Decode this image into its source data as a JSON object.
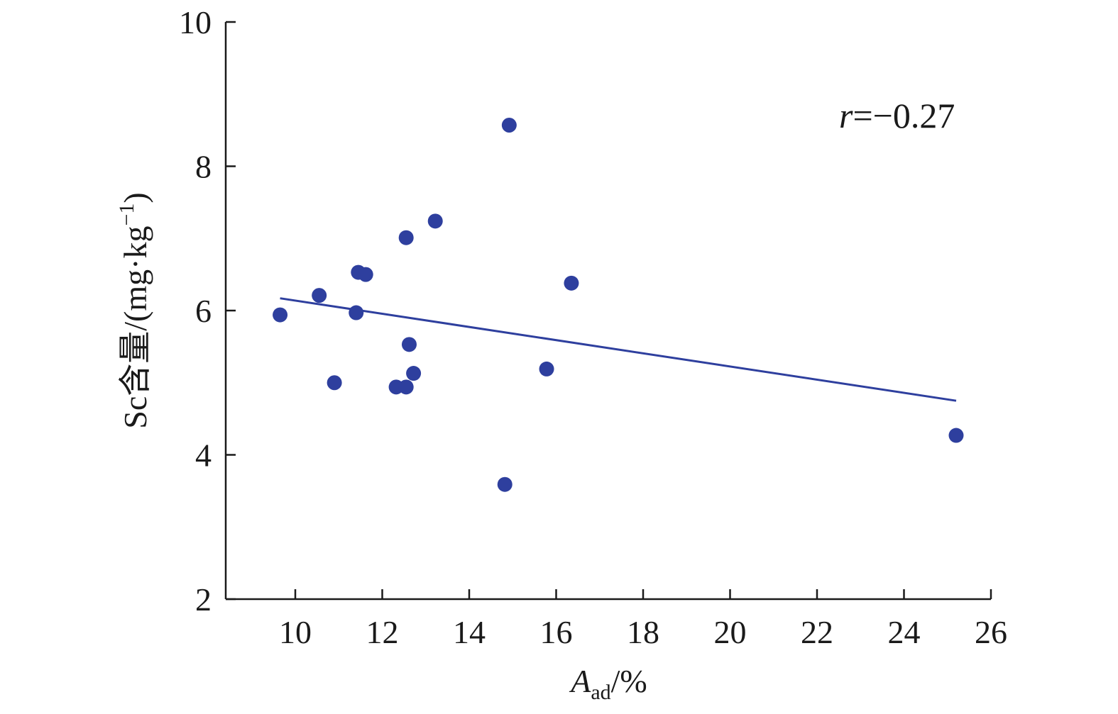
{
  "chart_data": {
    "type": "scatter",
    "title": "",
    "xlabel": {
      "main": "A",
      "subscript": "ad",
      "suffix": "/%"
    },
    "ylabel": {
      "prefix": "Sc含量/(mg·kg",
      "superscript": "−1",
      "suffix": ")"
    },
    "xlim": [
      8.4,
      26
    ],
    "ylim": [
      2,
      10
    ],
    "xticks": [
      10,
      12,
      14,
      16,
      18,
      20,
      22,
      24,
      26
    ],
    "yticks": [
      2,
      4,
      6,
      8,
      10
    ],
    "grid": false,
    "colors": {
      "points": "#2e3f9e",
      "line": "#2e3f9e",
      "axis": "#1a1a1a"
    },
    "points": [
      {
        "x": 9.65,
        "y": 5.94
      },
      {
        "x": 10.55,
        "y": 6.21
      },
      {
        "x": 10.9,
        "y": 5.0
      },
      {
        "x": 11.4,
        "y": 5.97
      },
      {
        "x": 11.45,
        "y": 6.53
      },
      {
        "x": 11.62,
        "y": 6.5
      },
      {
        "x": 12.32,
        "y": 4.94
      },
      {
        "x": 12.55,
        "y": 4.94
      },
      {
        "x": 12.55,
        "y": 7.01
      },
      {
        "x": 12.62,
        "y": 5.53
      },
      {
        "x": 12.72,
        "y": 5.13
      },
      {
        "x": 13.22,
        "y": 7.24
      },
      {
        "x": 14.82,
        "y": 3.59
      },
      {
        "x": 14.92,
        "y": 8.57
      },
      {
        "x": 15.78,
        "y": 5.19
      },
      {
        "x": 16.35,
        "y": 6.38
      },
      {
        "x": 25.2,
        "y": 4.27
      }
    ],
    "trendline": {
      "x": [
        9.65,
        25.2
      ],
      "y": [
        6.17,
        4.75
      ]
    },
    "annotation": {
      "variable": "r",
      "text": "=−0.27"
    }
  }
}
